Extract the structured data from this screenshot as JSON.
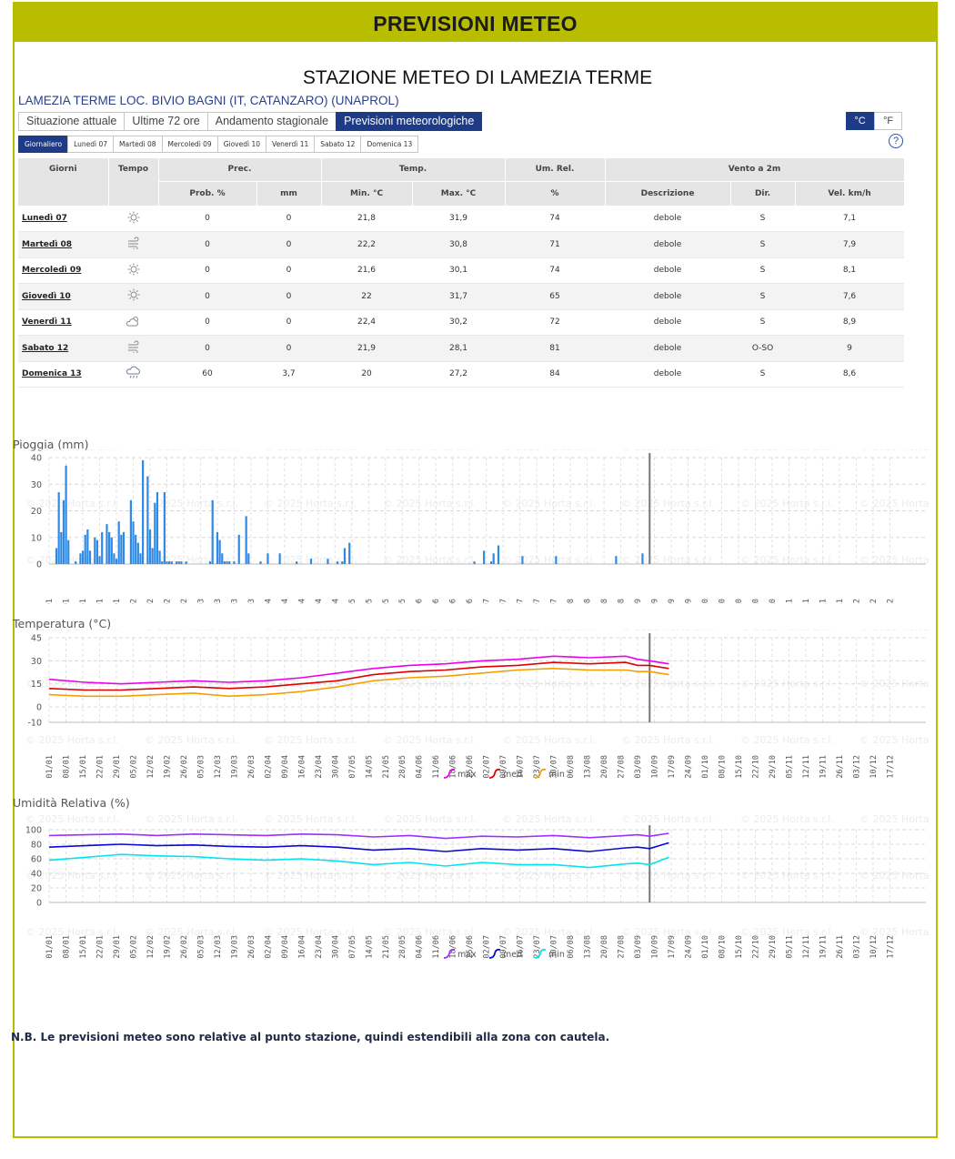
{
  "banner": {
    "title": "PREVISIONI METEO"
  },
  "station": {
    "title": "STAZIONE METEO DI LAMEZIA TERME",
    "name": "LAMEZIA TERME LOC. BIVIO BAGNI (IT, CATANZARO) (UNAPROL)"
  },
  "tabs": [
    {
      "label": "Situazione attuale",
      "active": false
    },
    {
      "label": "Ultime 72 ore",
      "active": false
    },
    {
      "label": "Andamento stagionale",
      "active": false
    },
    {
      "label": "Previsioni meteorologiche",
      "active": true
    }
  ],
  "units": [
    {
      "label": "°C",
      "active": true
    },
    {
      "label": "°F",
      "active": false
    }
  ],
  "subtabs": [
    {
      "label": "Giornaliero",
      "active": true
    },
    {
      "label": "Lunedì 07",
      "active": false
    },
    {
      "label": "Martedì 08",
      "active": false
    },
    {
      "label": "Mercoledì 09",
      "active": false
    },
    {
      "label": "Giovedì 10",
      "active": false
    },
    {
      "label": "Venerdì 11",
      "active": false
    },
    {
      "label": "Sabato 12",
      "active": false
    },
    {
      "label": "Domenica 13",
      "active": false
    }
  ],
  "help": {
    "symbol": "?"
  },
  "table": {
    "head": {
      "giorni": "Giorni",
      "tempo": "Tempo",
      "prec": "Prec.",
      "temp": "Temp.",
      "umrel": "Um. Rel.",
      "vento": "Vento a 2m",
      "prob": "Prob. %",
      "mm": "mm",
      "min": "Min. °C",
      "max": "Max. °C",
      "pct": "%",
      "descr": "Descrizione",
      "dir": "Dir.",
      "vel": "Vel. km/h"
    },
    "rows": [
      {
        "day": "Lunedì 07",
        "icon": "sun-icon",
        "prob": "0",
        "mm": "0",
        "min": "21,8",
        "max": "31,9",
        "rh": "74",
        "descr": "debole",
        "dir": "S",
        "vel": "7,1"
      },
      {
        "day": "Martedì 08",
        "icon": "wind-icon",
        "prob": "0",
        "mm": "0",
        "min": "22,2",
        "max": "30,8",
        "rh": "71",
        "descr": "debole",
        "dir": "S",
        "vel": "7,9"
      },
      {
        "day": "Mercoledì 09",
        "icon": "sun-icon",
        "prob": "0",
        "mm": "0",
        "min": "21,6",
        "max": "30,1",
        "rh": "74",
        "descr": "debole",
        "dir": "S",
        "vel": "8,1"
      },
      {
        "day": "Giovedì 10",
        "icon": "sun-icon",
        "prob": "0",
        "mm": "0",
        "min": "22",
        "max": "31,7",
        "rh": "65",
        "descr": "debole",
        "dir": "S",
        "vel": "7,6"
      },
      {
        "day": "Venerdì 11",
        "icon": "partly-cloudy-icon",
        "prob": "0",
        "mm": "0",
        "min": "22,4",
        "max": "30,2",
        "rh": "72",
        "descr": "debole",
        "dir": "S",
        "vel": "8,9"
      },
      {
        "day": "Sabato 12",
        "icon": "wind-icon",
        "prob": "0",
        "mm": "0",
        "min": "21,9",
        "max": "28,1",
        "rh": "81",
        "descr": "debole",
        "dir": "O-SO",
        "vel": "9"
      },
      {
        "day": "Domenica 13",
        "icon": "rain-cloud-icon",
        "prob": "60",
        "mm": "3,7",
        "min": "20",
        "max": "27,2",
        "rh": "84",
        "descr": "debole",
        "dir": "S",
        "vel": "8,6"
      }
    ]
  },
  "note": "N.B. Le previsioni meteo sono relative al punto stazione, quindi estendibili alla zona con cautela.",
  "colors": {
    "banner": "#b8bd00",
    "accent": "#1d3b87",
    "rain": "#2e8ae6",
    "t_max": "#ee00ee",
    "t_med": "#e00000",
    "t_min": "#f5a000",
    "h_max": "#9b30ff",
    "h_med": "#0a0ad4",
    "h_min": "#00e5ee"
  },
  "watermark": "© 2025 Horta s.r.l.",
  "chart_data": [
    {
      "type": "bar",
      "title": "Pioggia (mm)",
      "ylim": [
        0,
        40
      ],
      "yticks": [
        0,
        10,
        20,
        30,
        40
      ],
      "x_tick_labels": [
        "01/01",
        "08/01",
        "15/01",
        "22/01",
        "29/01",
        "05/02",
        "12/02",
        "19/02",
        "26/02",
        "05/03",
        "12/03",
        "19/03",
        "26/03",
        "02/04",
        "09/04",
        "16/04",
        "23/04",
        "30/04",
        "07/05",
        "14/05",
        "21/05",
        "28/05",
        "04/06",
        "11/06",
        "18/06",
        "25/06",
        "02/07",
        "09/07",
        "16/07",
        "23/07",
        "30/07",
        "06/08",
        "13/08",
        "20/08",
        "27/08",
        "03/09",
        "10/09",
        "17/09",
        "24/09",
        "01/10",
        "08/10",
        "15/10",
        "22/10",
        "29/10",
        "05/11",
        "12/11",
        "19/11",
        "26/11",
        "03/12",
        "10/12",
        "17/12"
      ],
      "grid": true,
      "current_day": 250,
      "series": [
        {
          "day": [
            3,
            4,
            5,
            6,
            7,
            8,
            11,
            13,
            14,
            15,
            16,
            17,
            19,
            20,
            21,
            22,
            24,
            25,
            26,
            27,
            28,
            29,
            30,
            31,
            34,
            35,
            36,
            37,
            38,
            39,
            41,
            42,
            43,
            44,
            45,
            46,
            47,
            48,
            49,
            50,
            51,
            53,
            54,
            55,
            57,
            67,
            68,
            70,
            71,
            72,
            73,
            74,
            75,
            77,
            79,
            82,
            83,
            88,
            91,
            96,
            103,
            109,
            116,
            120,
            122,
            123,
            125,
            177,
            181,
            184,
            185,
            187,
            197,
            211,
            236,
            247
          ],
          "values": [
            6,
            27,
            12,
            24,
            37,
            9,
            1,
            4,
            5,
            11,
            13,
            5,
            10,
            9,
            3,
            12,
            15,
            12,
            10,
            4,
            2,
            16,
            11,
            12,
            24,
            16,
            11,
            8,
            4,
            39,
            33,
            13,
            6,
            23,
            27,
            5,
            1,
            27,
            1,
            1,
            1,
            1,
            1,
            1,
            1,
            1,
            24,
            12,
            9,
            4,
            1,
            1,
            1,
            1,
            11,
            18,
            4,
            1,
            4,
            4,
            1,
            2,
            2,
            1,
            1,
            6,
            8,
            1,
            5,
            1,
            4,
            7,
            3,
            3,
            3,
            4
          ]
        }
      ]
    },
    {
      "type": "line",
      "title": "Temperatura (°C)",
      "ylim": [
        -10,
        45
      ],
      "yticks": [
        -10,
        0,
        15,
        30,
        45
      ],
      "grid": true,
      "legend": "bottom",
      "current_day": 250,
      "series": [
        {
          "name": "max",
          "day": [
            0,
            15,
            30,
            45,
            60,
            75,
            90,
            105,
            120,
            135,
            150,
            165,
            180,
            195,
            210,
            225,
            240,
            245,
            250,
            258
          ],
          "values": [
            18,
            16,
            15,
            16,
            17,
            16,
            17,
            19,
            22,
            25,
            27,
            28,
            30,
            31,
            33,
            32,
            33,
            31,
            30,
            28
          ]
        },
        {
          "name": "med",
          "day": [
            0,
            15,
            30,
            45,
            60,
            75,
            90,
            105,
            120,
            135,
            150,
            165,
            180,
            195,
            210,
            225,
            240,
            245,
            250,
            258
          ],
          "values": [
            12,
            11,
            11,
            12,
            13,
            12,
            13,
            15,
            17,
            21,
            23,
            24,
            26,
            27,
            29,
            28,
            29,
            27,
            27,
            25
          ]
        },
        {
          "name": "min",
          "day": [
            0,
            15,
            30,
            45,
            60,
            75,
            90,
            105,
            120,
            135,
            150,
            165,
            180,
            195,
            210,
            225,
            240,
            245,
            250,
            258
          ],
          "values": [
            8,
            7,
            7,
            8,
            9,
            7,
            8,
            10,
            13,
            17,
            19,
            20,
            22,
            24,
            25,
            24,
            24,
            23,
            23,
            21
          ]
        }
      ]
    },
    {
      "type": "line",
      "title": "Umidità Relativa (%)",
      "ylim": [
        0,
        100
      ],
      "yticks": [
        0,
        20,
        40,
        60,
        80,
        100
      ],
      "grid": true,
      "legend": "bottom",
      "current_day": 250,
      "series": [
        {
          "name": "max",
          "day": [
            0,
            15,
            30,
            45,
            60,
            75,
            90,
            105,
            120,
            135,
            150,
            165,
            180,
            195,
            210,
            225,
            240,
            245,
            250,
            258
          ],
          "values": [
            92,
            93,
            94,
            92,
            94,
            93,
            92,
            94,
            93,
            90,
            92,
            88,
            91,
            90,
            92,
            89,
            92,
            93,
            91,
            95
          ]
        },
        {
          "name": "med",
          "day": [
            0,
            15,
            30,
            45,
            60,
            75,
            90,
            105,
            120,
            135,
            150,
            165,
            180,
            195,
            210,
            225,
            240,
            245,
            250,
            258
          ],
          "values": [
            76,
            78,
            80,
            78,
            79,
            77,
            76,
            78,
            76,
            72,
            74,
            70,
            74,
            72,
            74,
            70,
            75,
            76,
            74,
            82
          ]
        },
        {
          "name": "min",
          "day": [
            0,
            15,
            30,
            45,
            60,
            75,
            90,
            105,
            120,
            135,
            150,
            165,
            180,
            195,
            210,
            225,
            240,
            245,
            250,
            258
          ],
          "values": [
            58,
            62,
            66,
            64,
            63,
            60,
            58,
            60,
            57,
            52,
            55,
            50,
            55,
            52,
            52,
            48,
            53,
            54,
            52,
            62
          ]
        }
      ]
    }
  ]
}
